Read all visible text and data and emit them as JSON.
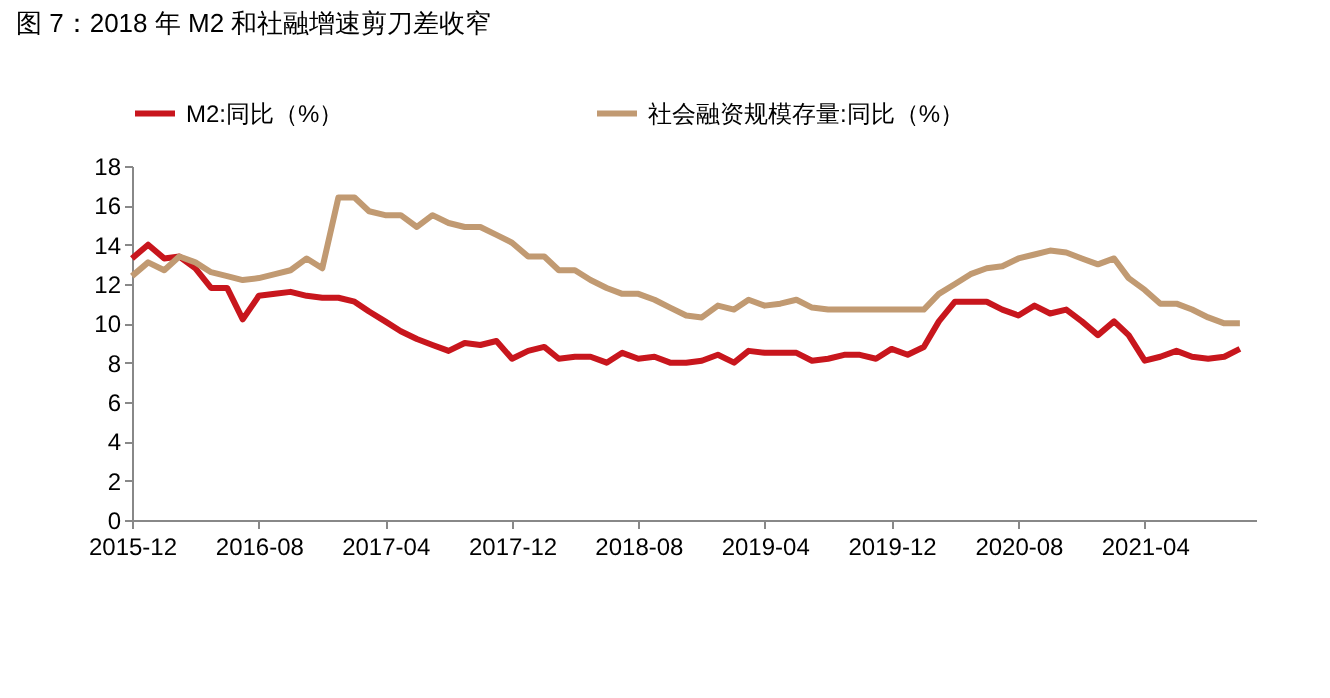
{
  "chart_data": {
    "type": "line",
    "title": "图 7：2018 年 M2 和社融增速剪刀差收窄",
    "x": [
      "2015-12",
      "2016-01",
      "2016-02",
      "2016-03",
      "2016-04",
      "2016-05",
      "2016-06",
      "2016-07",
      "2016-08",
      "2016-09",
      "2016-10",
      "2016-11",
      "2016-12",
      "2017-01",
      "2017-02",
      "2017-03",
      "2017-04",
      "2017-05",
      "2017-06",
      "2017-07",
      "2017-08",
      "2017-09",
      "2017-10",
      "2017-11",
      "2017-12",
      "2018-01",
      "2018-02",
      "2018-03",
      "2018-04",
      "2018-05",
      "2018-06",
      "2018-07",
      "2018-08",
      "2018-09",
      "2018-10",
      "2018-11",
      "2018-12",
      "2019-01",
      "2019-02",
      "2019-03",
      "2019-04",
      "2019-05",
      "2019-06",
      "2019-07",
      "2019-08",
      "2019-09",
      "2019-10",
      "2019-11",
      "2019-12",
      "2020-01",
      "2020-02",
      "2020-03",
      "2020-04",
      "2020-05",
      "2020-06",
      "2020-07",
      "2020-08",
      "2020-09",
      "2020-10",
      "2020-11",
      "2020-12",
      "2021-01",
      "2021-02",
      "2021-03",
      "2021-04",
      "2021-05",
      "2021-06",
      "2021-07",
      "2021-08",
      "2021-09",
      "2021-10"
    ],
    "series": [
      {
        "name": "M2:同比（%）",
        "color": "#c8161d",
        "values": [
          13.3,
          14.0,
          13.3,
          13.4,
          12.8,
          11.8,
          11.8,
          10.2,
          11.4,
          11.5,
          11.6,
          11.4,
          11.3,
          11.3,
          11.1,
          10.6,
          10.1,
          9.6,
          9.2,
          8.9,
          8.6,
          9.0,
          8.9,
          9.1,
          8.2,
          8.6,
          8.8,
          8.2,
          8.3,
          8.3,
          8.0,
          8.5,
          8.2,
          8.3,
          8.0,
          8.0,
          8.1,
          8.4,
          8.0,
          8.6,
          8.5,
          8.5,
          8.5,
          8.1,
          8.2,
          8.4,
          8.4,
          8.2,
          8.7,
          8.4,
          8.8,
          10.1,
          11.1,
          11.1,
          11.1,
          10.7,
          10.4,
          10.9,
          10.5,
          10.7,
          10.1,
          9.4,
          10.1,
          9.4,
          8.1,
          8.3,
          8.6,
          8.3,
          8.2,
          8.3,
          8.7
        ]
      },
      {
        "name": "社会融资规模存量:同比（%）",
        "color": "#c19a72",
        "values": [
          12.4,
          13.1,
          12.7,
          13.4,
          13.1,
          12.6,
          12.4,
          12.2,
          12.3,
          12.5,
          12.7,
          13.3,
          12.8,
          16.4,
          16.4,
          15.7,
          15.5,
          15.5,
          14.9,
          15.5,
          15.1,
          14.9,
          14.9,
          14.5,
          14.1,
          13.4,
          13.4,
          12.7,
          12.7,
          12.2,
          11.8,
          11.5,
          11.5,
          11.2,
          10.8,
          10.4,
          10.3,
          10.9,
          10.7,
          11.2,
          10.9,
          11.0,
          11.2,
          10.8,
          10.7,
          10.7,
          10.7,
          10.7,
          10.7,
          10.7,
          10.7,
          11.5,
          12.0,
          12.5,
          12.8,
          12.9,
          13.3,
          13.5,
          13.7,
          13.6,
          13.3,
          13.0,
          13.3,
          12.3,
          11.7,
          11.0,
          11.0,
          10.7,
          10.3,
          10.0,
          10.0
        ]
      }
    ],
    "xlim": [
      "2015-12",
      "2021-11"
    ],
    "xticks": [
      "2015-12",
      "2016-08",
      "2017-04",
      "2017-12",
      "2018-08",
      "2019-04",
      "2019-12",
      "2020-08",
      "2021-04"
    ],
    "ylim": [
      0,
      18
    ],
    "yticks": [
      0,
      2,
      4,
      6,
      8,
      10,
      12,
      14,
      16,
      18
    ],
    "legend": "top",
    "grid": false,
    "marker": "none",
    "line_style": "solid"
  }
}
